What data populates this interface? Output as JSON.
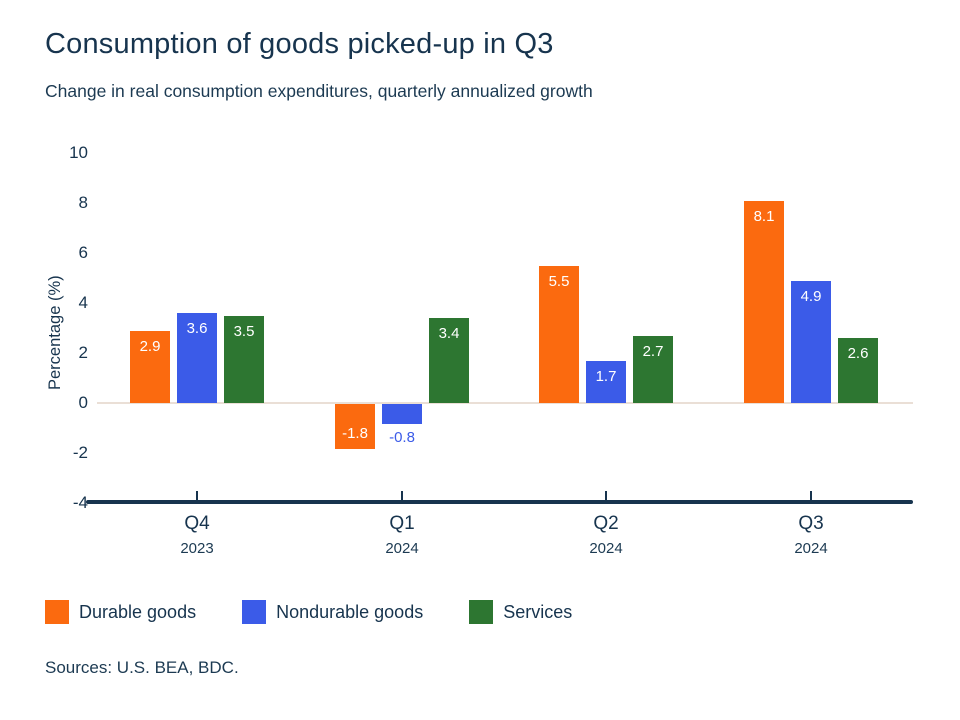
{
  "header": {
    "title": "Consumption of goods picked-up in Q3",
    "subtitle": "Change in real consumption expenditures, quarterly annualized growth"
  },
  "chart_data": {
    "type": "bar",
    "categories": [
      "Q4",
      "Q1",
      "Q2",
      "Q3"
    ],
    "category_years": [
      "2023",
      "2024",
      "2024",
      "2024"
    ],
    "series": [
      {
        "name": "Durable goods",
        "color": "#FB6A0F",
        "values": [
          2.9,
          -1.8,
          5.5,
          8.1
        ]
      },
      {
        "name": "Nondurable goods",
        "color": "#3B5BE8",
        "values": [
          3.6,
          -0.8,
          1.7,
          4.9
        ]
      },
      {
        "name": "Services",
        "color": "#2D7631",
        "values": [
          3.5,
          3.4,
          2.7,
          2.6
        ]
      }
    ],
    "title": "Consumption of goods picked-up in Q3",
    "xlabel": "",
    "ylabel": "Percentage (%)",
    "yticks": [
      10,
      8,
      6,
      4,
      2,
      0,
      -2,
      -4
    ],
    "ylim": [
      -4,
      10
    ],
    "grid": false,
    "zero_line": true,
    "legend_position": "bottom",
    "data_labels": true
  },
  "footer": {
    "sources": "Sources: U.S. BEA, BDC."
  },
  "colors": {
    "text_navy": "#17344E",
    "axis": "#17344E",
    "zero_line": "#EADFD6",
    "background": "#ffffff",
    "label_on_bar": "#ffffff"
  }
}
